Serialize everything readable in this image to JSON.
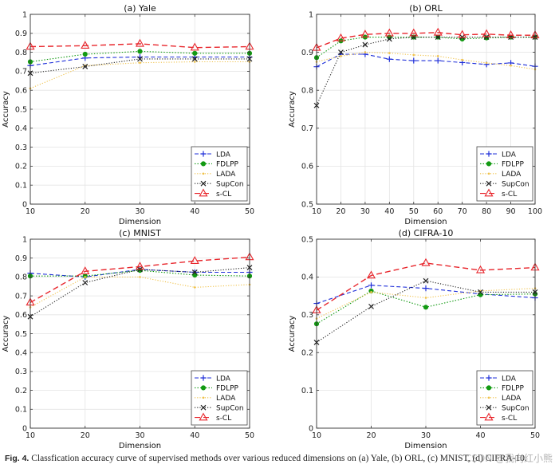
{
  "figure": {
    "caption_label": "Fig. 4.",
    "caption_text": "Classfication accuracy curve of supervised methods over various reduced dimensions on (a) Yale, (b) ORL, (c) MNIST, (d) CIFRA-10.",
    "watermark": "CSDN @我向红小熊"
  },
  "styles": {
    "LDA": {
      "color": "#1f2fd9",
      "dash": "5 3",
      "marker": "plus"
    },
    "FDLPP": {
      "color": "#129a12",
      "dash": "1.5 2",
      "marker": "star"
    },
    "LADA": {
      "color": "#f0c24a",
      "dash": "1.2 2",
      "marker": "dot"
    },
    "SupCon": {
      "color": "#222222",
      "dash": "1.2 2",
      "marker": "x"
    },
    "s-CL": {
      "color": "#e8262c",
      "dash": "7 4",
      "marker": "triangle"
    }
  },
  "chart_data": [
    {
      "type": "line",
      "title": "(a) Yale",
      "xlabel": "Dimension",
      "ylabel": "Accuracy",
      "x": [
        10,
        20,
        30,
        40,
        50
      ],
      "xticks": [
        10,
        20,
        30,
        40,
        50
      ],
      "xlim": [
        10,
        50
      ],
      "ylim": [
        0,
        1
      ],
      "yticks": [
        0,
        0.1,
        0.2,
        0.3,
        0.4,
        0.5,
        0.6,
        0.7,
        0.8,
        0.9,
        1
      ],
      "legend_position": "bottom-right",
      "series": [
        {
          "name": "LDA",
          "values": [
            0.73,
            0.77,
            0.775,
            0.775,
            0.775
          ]
        },
        {
          "name": "FDLPP",
          "values": [
            0.75,
            0.79,
            0.805,
            0.795,
            0.795
          ]
        },
        {
          "name": "LADA",
          "values": [
            0.61,
            0.73,
            0.745,
            0.75,
            0.75
          ]
        },
        {
          "name": "SupCon",
          "values": [
            0.69,
            0.725,
            0.765,
            0.765,
            0.765
          ]
        },
        {
          "name": "s-CL",
          "values": [
            0.83,
            0.835,
            0.845,
            0.825,
            0.83
          ]
        }
      ]
    },
    {
      "type": "line",
      "title": "(b) ORL",
      "xlabel": "Dimension",
      "ylabel": "Accuracy",
      "x": [
        10,
        20,
        30,
        40,
        50,
        60,
        70,
        80,
        90,
        100
      ],
      "xticks": [
        10,
        20,
        30,
        40,
        50,
        60,
        70,
        80,
        90,
        100
      ],
      "xlim": [
        10,
        100
      ],
      "ylim": [
        0.5,
        1
      ],
      "yticks": [
        0.5,
        0.6,
        0.7,
        0.8,
        0.9,
        1
      ],
      "legend_position": "bottom-right",
      "series": [
        {
          "name": "LDA",
          "values": [
            0.862,
            0.895,
            0.895,
            0.882,
            0.878,
            0.878,
            0.873,
            0.868,
            0.872,
            0.863
          ]
        },
        {
          "name": "FDLPP",
          "values": [
            0.886,
            0.93,
            0.94,
            0.94,
            0.94,
            0.94,
            0.935,
            0.938,
            0.94,
            0.94
          ]
        },
        {
          "name": "LADA",
          "values": [
            0.875,
            0.89,
            0.9,
            0.898,
            0.893,
            0.89,
            0.88,
            0.872,
            0.865,
            0.855
          ]
        },
        {
          "name": "SupCon",
          "values": [
            0.76,
            0.9,
            0.92,
            0.935,
            0.94,
            0.94,
            0.94,
            0.94,
            0.94,
            0.94
          ]
        },
        {
          "name": "s-CL",
          "values": [
            0.912,
            0.937,
            0.947,
            0.95,
            0.95,
            0.952,
            0.946,
            0.948,
            0.945,
            0.945
          ]
        }
      ]
    },
    {
      "type": "line",
      "title": "(c) MNIST",
      "xlabel": "Dimension",
      "ylabel": "Accuracy",
      "x": [
        10,
        20,
        30,
        40,
        50
      ],
      "xticks": [
        10,
        20,
        30,
        40,
        50
      ],
      "xlim": [
        10,
        50
      ],
      "ylim": [
        0,
        1
      ],
      "yticks": [
        0,
        0.1,
        0.2,
        0.3,
        0.4,
        0.5,
        0.6,
        0.7,
        0.8,
        0.9,
        1
      ],
      "legend_position": "bottom-right",
      "series": [
        {
          "name": "LDA",
          "values": [
            0.82,
            0.8,
            0.84,
            0.825,
            0.825
          ]
        },
        {
          "name": "FDLPP",
          "values": [
            0.805,
            0.805,
            0.835,
            0.81,
            0.805
          ]
        },
        {
          "name": "LADA",
          "values": [
            0.64,
            0.8,
            0.8,
            0.745,
            0.76
          ]
        },
        {
          "name": "SupCon",
          "values": [
            0.59,
            0.77,
            0.84,
            0.825,
            0.85
          ]
        },
        {
          "name": "s-CL",
          "values": [
            0.665,
            0.83,
            0.855,
            0.885,
            0.905
          ]
        }
      ]
    },
    {
      "type": "line",
      "title": "(d) CIFRA-10",
      "xlabel": "Dimension",
      "ylabel": "Accuracy",
      "x": [
        10,
        20,
        30,
        40,
        50
      ],
      "xticks": [
        10,
        20,
        30,
        40,
        50
      ],
      "xlim": [
        10,
        50
      ],
      "ylim": [
        0,
        0.5
      ],
      "yticks": [
        0,
        0.1,
        0.2,
        0.3,
        0.4,
        0.5
      ],
      "legend_position": "bottom-right",
      "series": [
        {
          "name": "LDA",
          "values": [
            0.33,
            0.378,
            0.37,
            0.355,
            0.345
          ]
        },
        {
          "name": "FDLPP",
          "values": [
            0.276,
            0.363,
            0.32,
            0.353,
            0.355
          ]
        },
        {
          "name": "LADA",
          "values": [
            0.29,
            0.36,
            0.345,
            0.363,
            0.37
          ]
        },
        {
          "name": "SupCon",
          "values": [
            0.227,
            0.322,
            0.39,
            0.36,
            0.36
          ]
        },
        {
          "name": "s-CL",
          "values": [
            0.312,
            0.404,
            0.437,
            0.418,
            0.425
          ]
        }
      ]
    }
  ]
}
